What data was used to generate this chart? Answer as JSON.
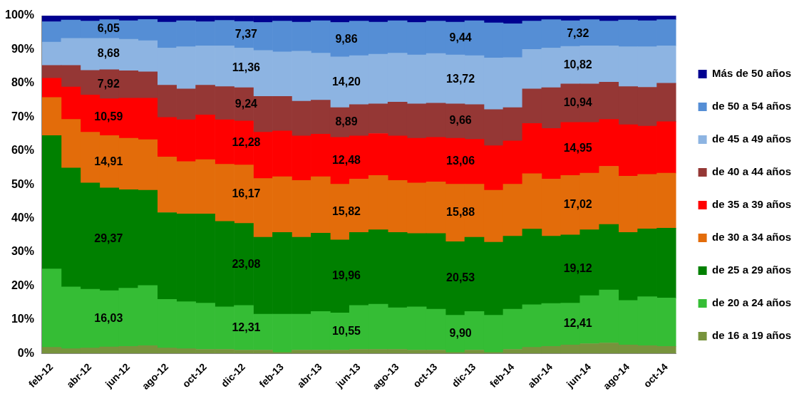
{
  "chart_data": {
    "type": "bar",
    "stacked": true,
    "legend": "right",
    "grid": false,
    "categories": [
      "feb-12",
      null,
      "abr-12",
      null,
      "jun-12",
      null,
      "ago-12",
      null,
      "oct-12",
      null,
      "dic-12",
      null,
      "feb-13",
      null,
      "abr-13",
      null,
      "jun-13",
      null,
      "ago-13",
      null,
      "oct-13",
      null,
      "dic-13",
      null,
      "feb-14",
      null,
      "abr-14",
      null,
      "jun-14",
      null,
      "ago-14",
      null,
      "oct-14"
    ],
    "ylim": [
      0,
      100
    ],
    "yticks": [
      {
        "value": 0,
        "label": "0%"
      },
      {
        "value": 10,
        "label": "10%"
      },
      {
        "value": 20,
        "label": "20%"
      },
      {
        "value": 30,
        "label": "30%"
      },
      {
        "value": 40,
        "label": "40%"
      },
      {
        "value": 50,
        "label": "50%"
      },
      {
        "value": 60,
        "label": "60%"
      },
      {
        "value": 70,
        "label": "70%"
      },
      {
        "value": 80,
        "label": "80%"
      },
      {
        "value": 90,
        "label": "90%"
      },
      {
        "value": 100,
        "label": "100%"
      }
    ],
    "series": [
      {
        "name": "de 16 a 19 años",
        "color": "#77933c",
        "values": [
          1.8,
          1.4,
          1.6,
          1.9,
          2.1,
          2.3,
          1.6,
          1.4,
          1.2,
          1.2,
          1.0,
          1.0,
          0.3,
          1.0,
          1.0,
          1.0,
          1.2,
          1.2,
          1.2,
          1.0,
          1.0,
          0.3,
          1.0,
          0.3,
          1.2,
          1.8,
          2.1,
          2.5,
          2.9,
          3.1,
          2.5,
          2.3,
          2.1
        ]
      },
      {
        "name": "de 20 a 24 años",
        "color": "#35bd35",
        "values": [
          23.2,
          18.3,
          17.4,
          16.7,
          17.2,
          17.8,
          14.4,
          13.9,
          13.7,
          12.6,
          13.2,
          10.6,
          11.3,
          10.6,
          11.4,
          11.0,
          13.0,
          13.4,
          12.3,
          12.8,
          12.1,
          11.0,
          11.4,
          11.0,
          11.9,
          12.6,
          12.7,
          12.4,
          14.2,
          15.7,
          13.2,
          14.5,
          14.3
        ]
      },
      {
        "name": "de 25 a 29 años",
        "color": "#008000",
        "values": [
          39.5,
          35.2,
          31.5,
          30.4,
          29.2,
          28.2,
          25.7,
          26.0,
          26.4,
          25.3,
          24.3,
          22.8,
          24.2,
          22.8,
          23.2,
          21.6,
          21.6,
          22.0,
          22.3,
          21.7,
          22.4,
          21.8,
          22.0,
          21.6,
          21.6,
          22.4,
          19.9,
          20.2,
          19.5,
          19.4,
          20.1,
          20.1,
          20.7
        ]
      },
      {
        "name": "de 30 a 34 años",
        "color": "#e36c0a",
        "values": [
          11.3,
          14.4,
          15.0,
          15.5,
          15.2,
          15.0,
          16.5,
          15.5,
          16.1,
          16.9,
          17.3,
          17.4,
          16.5,
          16.8,
          16.7,
          16.5,
          15.8,
          16.1,
          15.4,
          15.0,
          15.3,
          17.0,
          15.7,
          15.4,
          15.4,
          16.4,
          16.9,
          17.6,
          16.8,
          17.2,
          16.7,
          16.1,
          16.3
        ]
      },
      {
        "name": "de 35 a 39 años",
        "color": "#ff0000",
        "values": [
          5.7,
          9.6,
          11.0,
          10.9,
          11.9,
          12.3,
          11.7,
          12.4,
          13.2,
          13.2,
          13.0,
          13.7,
          13.6,
          13.2,
          12.6,
          13.9,
          12.8,
          12.4,
          13.2,
          13.2,
          13.2,
          13.6,
          13.3,
          13.2,
          12.8,
          14.9,
          15.0,
          15.7,
          15.0,
          13.9,
          15.2,
          14.3,
          15.2
        ]
      },
      {
        "name": "de 40 a 44 años",
        "color": "#953735",
        "values": [
          3.8,
          6.4,
          7.3,
          8.6,
          8.1,
          7.8,
          9.5,
          9.1,
          8.8,
          9.8,
          9.9,
          10.6,
          10.2,
          10.3,
          10.1,
          8.8,
          9.3,
          8.8,
          10.0,
          10.2,
          10.1,
          10.2,
          10.3,
          10.7,
          9.9,
          10.2,
          12.1,
          11.4,
          11.4,
          11.0,
          11.3,
          11.5,
          11.4
        ]
      },
      {
        "name": "de 45 a 49 años",
        "color": "#8db4e2",
        "values": [
          6.9,
          8.0,
          9.5,
          9.3,
          9.3,
          9.2,
          11.0,
          12.5,
          11.7,
          12.1,
          11.7,
          13.6,
          13.2,
          14.8,
          13.9,
          15.0,
          14.5,
          14.7,
          14.5,
          14.5,
          14.7,
          14.5,
          14.5,
          15.3,
          14.8,
          11.7,
          11.7,
          11.1,
          11.3,
          10.8,
          11.8,
          12.0,
          11.1
        ]
      },
      {
        "name": "de 50 a 54 años",
        "color": "#558ed5",
        "values": [
          6.0,
          5.4,
          5.1,
          5.5,
          5.5,
          6.3,
          7.7,
          7.7,
          7.1,
          7.5,
          7.9,
          8.3,
          9.1,
          8.6,
          9.6,
          10.2,
          10.2,
          9.5,
          9.6,
          9.6,
          9.6,
          9.7,
          10.3,
          10.4,
          10.0,
          8.4,
          8.4,
          7.6,
          7.7,
          7.3,
          7.9,
          7.7,
          7.7
        ]
      },
      {
        "name": "Más de 50 años",
        "color": "#000090",
        "values": [
          1.8,
          1.3,
          1.6,
          1.2,
          1.5,
          1.1,
          1.9,
          1.5,
          1.8,
          1.4,
          1.7,
          2.0,
          1.6,
          1.9,
          1.5,
          2.0,
          1.6,
          1.9,
          1.5,
          2.0,
          1.6,
          1.9,
          1.5,
          2.1,
          2.4,
          1.6,
          1.2,
          1.5,
          1.2,
          1.6,
          1.3,
          1.5,
          1.2
        ]
      }
    ],
    "annotations": [
      "6,05",
      "8,68",
      "7,92",
      "10,59",
      "14,91",
      "29,37",
      "16,03",
      "7,37",
      "11,36",
      "9,24",
      "12,28",
      "16,17",
      "23,08",
      "12,31",
      "9,86",
      "14,20",
      "8,89",
      "12,48",
      "15,82",
      "19,96",
      "10,55",
      "9,44",
      "13,72",
      "9,66",
      "13,06",
      "15,88",
      "20,53",
      "9,90",
      "7,32",
      "10,82",
      "10,94",
      "14,95",
      "17,02",
      "19,12",
      "12,41"
    ]
  }
}
